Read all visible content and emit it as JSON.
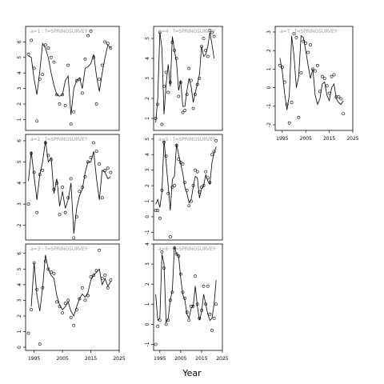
{
  "figure": {
    "xlabel": "Year"
  },
  "chart_data": [
    {
      "type": "scatter",
      "title": "a=1 : f=SPRINGSURVEY",
      "xlim": [
        1992,
        2025
      ],
      "ylim": [
        0.3,
        7.0
      ],
      "yticks": [
        1,
        2,
        3,
        4,
        5,
        6
      ],
      "xticks": [],
      "xtick_labels": [],
      "series": [
        {
          "kind": "points",
          "x": [
            1993,
            1994,
            1995,
            1996,
            1997,
            1998,
            1999,
            2000,
            2001,
            2002,
            2003,
            2004,
            2005,
            2006,
            2007,
            2008,
            2009,
            2010,
            2011,
            2012,
            2013,
            2014,
            2015,
            2016,
            2017,
            2018,
            2019,
            2020,
            2021,
            2022
          ],
          "y": [
            5.2,
            6.1,
            4.3,
            0.9,
            3.6,
            3.9,
            5.8,
            5.6,
            5.0,
            4.7,
            2.6,
            2.0,
            2.6,
            1.9,
            4.5,
            0.7,
            1.5,
            3.5,
            3.6,
            2.7,
            4.9,
            6.4,
            6.7,
            5.0,
            2.0,
            3.6,
            4.5,
            6.0,
            5.9,
            5.6
          ]
        },
        {
          "kind": "line",
          "x": [
            1993,
            1994,
            1995,
            1996,
            1997,
            1998,
            1999,
            2000,
            2001,
            2002,
            2003,
            2004,
            2005,
            2006,
            2007,
            2008,
            2009,
            2010,
            2011,
            2012,
            2013,
            2014,
            2015,
            2016,
            2017,
            2018,
            2019,
            2020,
            2021,
            2022
          ],
          "y": [
            5.1,
            5.0,
            3.6,
            2.6,
            4.1,
            5.9,
            5.6,
            5.0,
            4.0,
            3.2,
            2.6,
            2.5,
            2.6,
            3.5,
            3.8,
            1.3,
            3.0,
            3.5,
            3.7,
            3.0,
            4.3,
            4.4,
            4.6,
            5.2,
            3.8,
            2.8,
            4.0,
            5.0,
            5.8,
            5.6
          ]
        }
      ]
    },
    {
      "type": "scatter",
      "title": "a=4 : f=SPRINGSURVEY",
      "xlim": [
        1992,
        2025
      ],
      "ylim": [
        0.4,
        5.6
      ],
      "yticks": [
        1,
        2,
        3,
        4,
        5
      ],
      "xticks": [],
      "xtick_labels": [],
      "series": [
        {
          "kind": "points",
          "x": [
            1993,
            1994,
            1995,
            1996,
            1997,
            1998,
            1999,
            2000,
            2001,
            2002,
            2003,
            2004,
            2005,
            2006,
            2007,
            2008,
            2009,
            2010,
            2011,
            2012,
            2013,
            2014,
            2015,
            2016,
            2017,
            2018,
            2019,
            2020,
            2021
          ],
          "y": [
            1.0,
            1.7,
            5.3,
            0.7,
            2.6,
            3.3,
            2.3,
            2.8,
            4.8,
            4.4,
            4.0,
            2.1,
            2.8,
            1.3,
            1.4,
            2.2,
            3.5,
            2.9,
            1.5,
            2.2,
            2.7,
            3.0,
            4.6,
            5.0,
            4.4,
            4.1,
            5.4,
            5.3,
            5.1
          ]
        },
        {
          "kind": "line",
          "x": [
            1993,
            1994,
            1995,
            1996,
            1997,
            1998,
            1999,
            2000,
            2001,
            2002,
            2003,
            2004,
            2005,
            2006,
            2007,
            2008,
            2009,
            2010,
            2011,
            2012,
            2013,
            2014,
            2015,
            2016,
            2017,
            2018,
            2019,
            2020,
            2021
          ],
          "y": [
            0.8,
            2.0,
            5.3,
            4.5,
            1.2,
            2.7,
            3.7,
            2.6,
            5.1,
            4.4,
            3.8,
            2.4,
            2.9,
            1.6,
            1.6,
            2.4,
            3.0,
            2.6,
            1.8,
            2.3,
            2.7,
            3.2,
            4.6,
            4.1,
            4.2,
            4.6,
            5.3,
            4.7,
            4.0
          ]
        }
      ]
    },
    {
      "type": "scatter",
      "title": "a=7 : f=SPRINGSURVEY",
      "xlim": [
        1992,
        2025
      ],
      "ylim": [
        -2.3,
        3.3
      ],
      "yticks": [
        -2,
        -1,
        0,
        1,
        2,
        3
      ],
      "xticks": [
        1995,
        2005,
        2015,
        2025
      ],
      "xtick_labels": [
        "1995",
        "2005",
        "2015",
        "2025"
      ],
      "series": [
        {
          "kind": "points",
          "x": [
            1994,
            1995,
            1996,
            1997,
            1998,
            1999,
            2000,
            2001,
            2002,
            2003,
            2004,
            2005,
            2006,
            2007,
            2008,
            2009,
            2010,
            2011,
            2012,
            2013,
            2014,
            2015,
            2016,
            2017,
            2018,
            2019,
            2020,
            2021
          ],
          "y": [
            1.2,
            1.1,
            0.3,
            -0.9,
            -1.9,
            -0.8,
            2.9,
            2.7,
            -1.6,
            0.8,
            2.5,
            2.4,
            1.9,
            2.3,
            1.0,
            0.9,
            1.2,
            -0.2,
            0.6,
            0.5,
            0.1,
            -0.3,
            0.6,
            0.7,
            -0.5,
            -0.5,
            -0.6,
            -1.4
          ]
        },
        {
          "kind": "line",
          "x": [
            1994,
            1995,
            1996,
            1997,
            1998,
            1999,
            2000,
            2001,
            2002,
            2003,
            2004,
            2005,
            2006,
            2007,
            2008,
            2009,
            2010,
            2011,
            2012,
            2013,
            2014,
            2015,
            2016,
            2017,
            2018,
            2019,
            2020,
            2021
          ],
          "y": [
            1.6,
            0.9,
            -0.3,
            -1.2,
            -0.4,
            2.8,
            1.7,
            0.0,
            0.6,
            2.8,
            2.7,
            2.0,
            1.2,
            0.5,
            1.0,
            -0.4,
            -0.9,
            -0.6,
            0.2,
            0.3,
            -0.4,
            -0.7,
            0.0,
            0.2,
            -0.6,
            -0.8,
            -0.9,
            -0.7
          ]
        }
      ]
    },
    {
      "type": "scatter",
      "title": "a=2 : f=SPRINGSURVEY",
      "xlim": [
        1992,
        2025
      ],
      "ylim": [
        1.3,
        6.3
      ],
      "yticks": [
        2,
        3,
        4,
        5,
        6
      ],
      "xticks": [],
      "xtick_labels": [],
      "series": [
        {
          "kind": "points",
          "x": [
            1993,
            1994,
            1995,
            1996,
            1997,
            1998,
            1999,
            2000,
            2001,
            2002,
            2003,
            2004,
            2005,
            2006,
            2007,
            2008,
            2009,
            2010,
            2011,
            2012,
            2013,
            2014,
            2015,
            2016,
            2017,
            2018,
            2019,
            2020,
            2021,
            2022
          ],
          "y": [
            3.0,
            5.4,
            4.5,
            2.6,
            4.4,
            4.6,
            5.9,
            5.3,
            5.1,
            3.7,
            4.0,
            2.5,
            3.8,
            2.6,
            3.3,
            4.2,
            1.4,
            2.4,
            3.6,
            3.8,
            4.3,
            5.0,
            5.2,
            5.9,
            5.5,
            4.9,
            3.3,
            4.6,
            4.7,
            4.5
          ]
        },
        {
          "kind": "line",
          "x": [
            1993,
            1994,
            1995,
            1996,
            1997,
            1998,
            1999,
            2000,
            2001,
            2002,
            2003,
            2004,
            2005,
            2006,
            2007,
            2008,
            2009,
            2010,
            2011,
            2012,
            2013,
            2014,
            2015,
            2016,
            2017,
            2018,
            2019,
            2020,
            2021,
            2022
          ],
          "y": [
            4.1,
            5.5,
            4.3,
            3.2,
            4.4,
            5.0,
            6.0,
            5.0,
            5.2,
            3.5,
            4.2,
            2.9,
            3.6,
            2.8,
            3.2,
            4.0,
            1.6,
            2.8,
            3.4,
            3.7,
            4.5,
            5.0,
            5.0,
            5.5,
            4.2,
            3.2,
            4.6,
            4.5,
            4.2,
            4.3
          ]
        }
      ]
    },
    {
      "type": "scatter",
      "title": "a=5 : f=SPRINGSURVEY",
      "xlim": [
        1992,
        2025
      ],
      "ylim": [
        -1.5,
        5.3
      ],
      "yticks": [
        -1,
        0,
        1,
        2,
        3,
        4,
        5
      ],
      "xticks": [],
      "xtick_labels": [],
      "series": [
        {
          "kind": "points",
          "x": [
            1993,
            1994,
            1995,
            1996,
            1997,
            1998,
            1999,
            2000,
            2001,
            2002,
            2003,
            2004,
            2005,
            2006,
            2007,
            2008,
            2009,
            2010,
            2011,
            2012,
            2013,
            2014,
            2015,
            2016,
            2017,
            2018,
            2019,
            2020,
            2021,
            2022
          ],
          "y": [
            0.4,
            0.4,
            -0.1,
            1.7,
            4.8,
            3.9,
            1.5,
            -1.3,
            1.9,
            2.0,
            4.6,
            3.7,
            3.5,
            3.4,
            2.2,
            1.7,
            0.7,
            1.0,
            2.0,
            3.0,
            2.9,
            1.6,
            1.9,
            2.0,
            2.9,
            2.5,
            2.2,
            4.0,
            4.2,
            4.9
          ]
        },
        {
          "kind": "line",
          "x": [
            1993,
            1994,
            1995,
            1996,
            1997,
            1998,
            1999,
            2000,
            2001,
            2002,
            2003,
            2004,
            2005,
            2006,
            2007,
            2008,
            2009,
            2010,
            2011,
            2012,
            2013,
            2014,
            2015,
            2016,
            2017,
            2018,
            2019,
            2020,
            2021,
            2022
          ],
          "y": [
            0.8,
            1.1,
            0.6,
            1.6,
            4.9,
            3.5,
            2.0,
            0.4,
            2.4,
            2.6,
            4.7,
            4.0,
            3.4,
            2.8,
            1.9,
            1.5,
            0.9,
            1.1,
            1.9,
            2.6,
            2.5,
            1.2,
            1.8,
            2.0,
            2.7,
            2.3,
            2.1,
            3.5,
            4.1,
            4.5
          ]
        }
      ]
    },
    {
      "type": "scatter",
      "title": "a=3 : f=SPRINGSURVEY",
      "xlim": [
        1992,
        2025
      ],
      "ylim": [
        -0.2,
        6.6
      ],
      "yticks": [
        0,
        1,
        2,
        3,
        4,
        5,
        6
      ],
      "xticks": [
        1995,
        2005,
        2015,
        2025
      ],
      "xtick_labels": [
        "1995",
        "2005",
        "2015",
        "2025"
      ],
      "series": [
        {
          "kind": "points",
          "x": [
            1993,
            1994,
            1995,
            1996,
            1997,
            1998,
            1999,
            2000,
            2001,
            2002,
            2003,
            2004,
            2005,
            2006,
            2007,
            2008,
            2009,
            2010,
            2011,
            2012,
            2013,
            2014,
            2015,
            2016,
            2017,
            2018,
            2019,
            2020,
            2021,
            2022
          ],
          "y": [
            0.9,
            2.4,
            5.4,
            3.7,
            0.2,
            3.8,
            5.5,
            5.0,
            4.8,
            4.7,
            2.9,
            2.6,
            2.2,
            2.8,
            3.0,
            1.9,
            1.4,
            2.4,
            3.1,
            3.8,
            3.0,
            3.3,
            4.5,
            4.6,
            4.9,
            6.2,
            4.4,
            4.6,
            3.8,
            4.3
          ]
        },
        {
          "kind": "line",
          "x": [
            1994,
            1995,
            1996,
            1997,
            1998,
            1999,
            2000,
            2001,
            2002,
            2003,
            2004,
            2005,
            2006,
            2007,
            2008,
            2009,
            2010,
            2011,
            2012,
            2013,
            2014,
            2015,
            2016,
            2017,
            2018,
            2019,
            2020,
            2021,
            2022
          ],
          "y": [
            2.6,
            5.4,
            3.3,
            2.3,
            3.8,
            5.9,
            5.0,
            4.6,
            4.4,
            3.3,
            2.7,
            2.4,
            2.6,
            2.9,
            2.3,
            2.0,
            2.6,
            3.1,
            3.4,
            3.2,
            3.5,
            4.3,
            4.6,
            4.8,
            5.0,
            4.0,
            4.4,
            3.9,
            4.2
          ]
        }
      ]
    },
    {
      "type": "scatter",
      "title": "a=6 : f=SPRINGSURVEY",
      "xlim": [
        1992,
        2025
      ],
      "ylim": [
        -1.3,
        4.0
      ],
      "yticks": [
        -1,
        0,
        1,
        2,
        3,
        4
      ],
      "xticks": [
        1995,
        2005,
        2015,
        2025
      ],
      "xtick_labels": [
        "1995",
        "2005",
        "2015",
        "2025"
      ],
      "series": [
        {
          "kind": "points",
          "x": [
            1993,
            1994,
            1995,
            1996,
            1997,
            1998,
            1999,
            2000,
            2001,
            2002,
            2003,
            2004,
            2005,
            2006,
            2007,
            2008,
            2009,
            2010,
            2011,
            2012,
            2013,
            2014,
            2015,
            2016,
            2017,
            2018,
            2019,
            2020,
            2021,
            2022
          ],
          "y": [
            -1.0,
            -0.1,
            0.2,
            3.6,
            2.8,
            0.0,
            0.2,
            1.2,
            1.6,
            3.8,
            3.5,
            3.4,
            2.5,
            1.6,
            1.3,
            0.6,
            0.2,
            0.9,
            0.9,
            2.4,
            1.0,
            0.3,
            0.7,
            1.9,
            1.0,
            1.9,
            0.5,
            -0.3,
            0.3,
            1.0
          ]
        },
        {
          "kind": "line",
          "x": [
            1993,
            1994,
            1995,
            1996,
            1997,
            1998,
            1999,
            2000,
            2001,
            2002,
            2003,
            2004,
            2005,
            2006,
            2007,
            2008,
            2009,
            2010,
            2011,
            2012,
            2013,
            2014,
            2015,
            2016,
            2017,
            2018,
            2019,
            2020,
            2021,
            2022
          ],
          "y": [
            1.5,
            0.2,
            0.3,
            3.5,
            3.0,
            0.1,
            0.3,
            1.2,
            1.7,
            3.9,
            3.5,
            3.4,
            2.3,
            1.5,
            1.2,
            0.5,
            0.3,
            0.8,
            0.9,
            1.9,
            0.9,
            0.2,
            0.6,
            1.5,
            1.0,
            0.5,
            0.2,
            0.3,
            1.0,
            2.2
          ]
        }
      ]
    }
  ]
}
